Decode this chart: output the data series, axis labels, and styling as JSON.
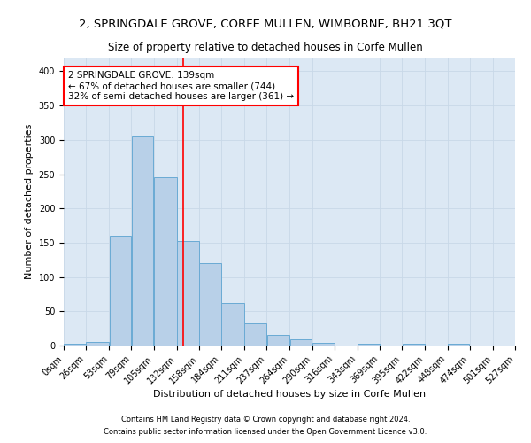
{
  "title1": "2, SPRINGDALE GROVE, CORFE MULLEN, WIMBORNE, BH21 3QT",
  "title2": "Size of property relative to detached houses in Corfe Mullen",
  "xlabel": "Distribution of detached houses by size in Corfe Mullen",
  "ylabel": "Number of detached properties",
  "footnote1": "Contains HM Land Registry data © Crown copyright and database right 2024.",
  "footnote2": "Contains public sector information licensed under the Open Government Licence v3.0.",
  "bin_labels": [
    "0sqm",
    "26sqm",
    "53sqm",
    "79sqm",
    "105sqm",
    "132sqm",
    "158sqm",
    "184sqm",
    "211sqm",
    "237sqm",
    "264sqm",
    "290sqm",
    "316sqm",
    "343sqm",
    "369sqm",
    "395sqm",
    "422sqm",
    "448sqm",
    "474sqm",
    "501sqm",
    "527sqm"
  ],
  "bar_values": [
    3,
    5,
    160,
    305,
    245,
    153,
    120,
    62,
    32,
    15,
    9,
    4,
    0,
    3,
    0,
    3,
    0,
    3,
    0,
    0
  ],
  "bar_color": "#b8d0e8",
  "bar_edge_color": "#6aaad4",
  "vline_color": "red",
  "vline_x": 139,
  "annotation_text": "2 SPRINGDALE GROVE: 139sqm\n← 67% of detached houses are smaller (744)\n32% of semi-detached houses are larger (361) →",
  "annotation_box_color": "white",
  "annotation_box_edge_color": "red",
  "ylim": [
    0,
    420
  ],
  "yticks": [
    0,
    50,
    100,
    150,
    200,
    250,
    300,
    350,
    400
  ],
  "grid_color": "#c8d8e8",
  "background_color": "#dce8f4",
  "title1_fontsize": 9.5,
  "title2_fontsize": 8.5,
  "xlabel_fontsize": 8,
  "ylabel_fontsize": 8,
  "annotation_fontsize": 7.5,
  "tick_fontsize": 7,
  "footnote_fontsize": 6
}
